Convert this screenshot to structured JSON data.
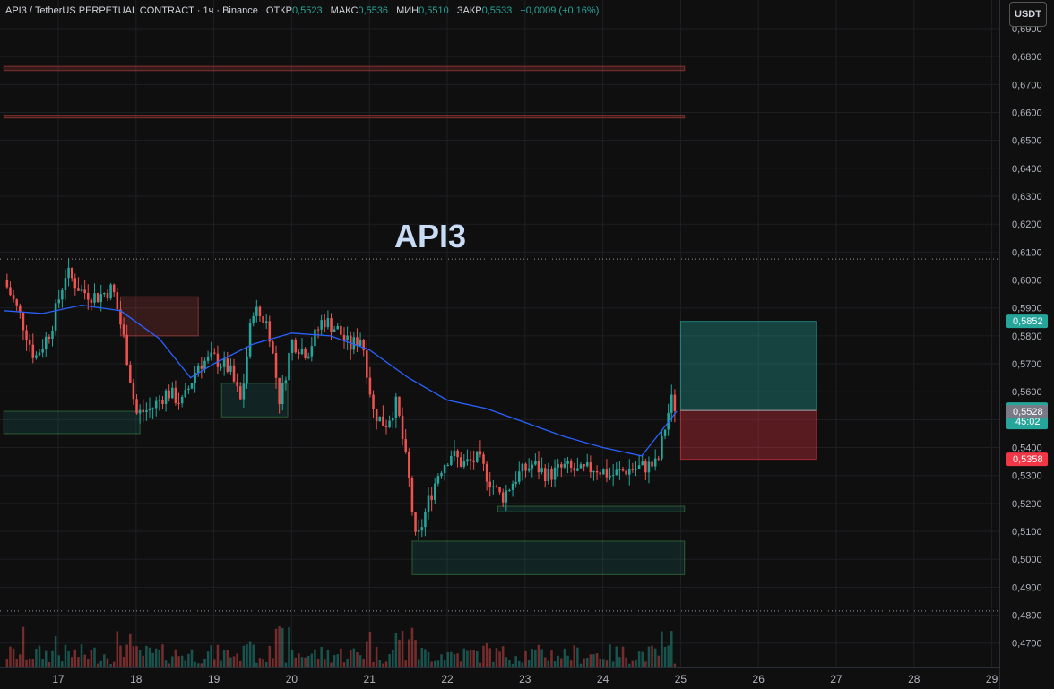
{
  "header": {
    "symbol": "API3 / TetherUS PERPETUAL CONTRACT · 1ч · Binance",
    "open_label": "ОТКР",
    "open": "0,5523",
    "high_label": "МАКС",
    "high": "0,5536",
    "low_label": "МИН",
    "low": "0,5510",
    "close_label": "ЗАКР",
    "close": "0,5533",
    "change": "+0,0009 (+0,16%)"
  },
  "currency_button": "USDT",
  "chart_label": "API3",
  "colors": {
    "background": "#0f0f10",
    "up": "#26a69a",
    "down": "#ef5350",
    "ma": "#2962ff",
    "grid": "#1e1f22",
    "target": "#26a69a",
    "stop": "#f23645"
  },
  "chart_data": {
    "type": "candlestick",
    "title": "API3",
    "timeframe": "1ч",
    "x_ticks": [
      "17",
      "18",
      "19",
      "20",
      "21",
      "22",
      "23",
      "24",
      "25",
      "26",
      "27",
      "28",
      "29"
    ],
    "x_range": [
      16.3,
      29.3
    ],
    "y_ticks": [
      "0,4700",
      "0,4800",
      "0,4900",
      "0,5000",
      "0,5100",
      "0,5200",
      "0,5300",
      "0,5400",
      "0,5500",
      "0,5600",
      "0,5700",
      "0,5800",
      "0,5900",
      "0,6000",
      "0,6100",
      "0,6200",
      "0,6300",
      "0,6400",
      "0,6500",
      "0,6600",
      "0,6700",
      "0,6800",
      "0,6900"
    ],
    "y_range": [
      0.4645,
      0.6905
    ],
    "price_path": [
      [
        16.3,
        0.6
      ],
      [
        16.5,
        0.588
      ],
      [
        16.7,
        0.572
      ],
      [
        16.9,
        0.582
      ],
      [
        17.1,
        0.603
      ],
      [
        17.3,
        0.596
      ],
      [
        17.5,
        0.594
      ],
      [
        17.7,
        0.597
      ],
      [
        17.85,
        0.578
      ],
      [
        18.0,
        0.552
      ],
      [
        18.2,
        0.554
      ],
      [
        18.4,
        0.56
      ],
      [
        18.6,
        0.556
      ],
      [
        18.8,
        0.57
      ],
      [
        19.0,
        0.572
      ],
      [
        19.2,
        0.568
      ],
      [
        19.35,
        0.556
      ],
      [
        19.5,
        0.59
      ],
      [
        19.7,
        0.584
      ],
      [
        19.85,
        0.556
      ],
      [
        20.0,
        0.578
      ],
      [
        20.2,
        0.574
      ],
      [
        20.4,
        0.586
      ],
      [
        20.6,
        0.582
      ],
      [
        20.75,
        0.576
      ],
      [
        20.9,
        0.58
      ],
      [
        21.05,
        0.553
      ],
      [
        21.2,
        0.548
      ],
      [
        21.35,
        0.556
      ],
      [
        21.5,
        0.53
      ],
      [
        21.6,
        0.505
      ],
      [
        21.75,
        0.52
      ],
      [
        21.9,
        0.532
      ],
      [
        22.05,
        0.538
      ],
      [
        22.2,
        0.534
      ],
      [
        22.4,
        0.536
      ],
      [
        22.55,
        0.528
      ],
      [
        22.7,
        0.522
      ],
      [
        22.9,
        0.53
      ],
      [
        23.1,
        0.534
      ],
      [
        23.3,
        0.53
      ],
      [
        23.5,
        0.533
      ],
      [
        23.7,
        0.531
      ],
      [
        23.9,
        0.533
      ],
      [
        24.1,
        0.53
      ],
      [
        24.3,
        0.532
      ],
      [
        24.5,
        0.533
      ],
      [
        24.7,
        0.534
      ],
      [
        24.82,
        0.55
      ],
      [
        24.88,
        0.557
      ],
      [
        24.95,
        0.5533
      ]
    ],
    "moving_average_path": [
      [
        16.3,
        0.589
      ],
      [
        16.8,
        0.588
      ],
      [
        17.3,
        0.591
      ],
      [
        17.8,
        0.589
      ],
      [
        18.3,
        0.579
      ],
      [
        18.7,
        0.565
      ],
      [
        19.0,
        0.57
      ],
      [
        19.5,
        0.577
      ],
      [
        20.0,
        0.581
      ],
      [
        20.5,
        0.58
      ],
      [
        21.0,
        0.575
      ],
      [
        21.5,
        0.565
      ],
      [
        22.0,
        0.557
      ],
      [
        22.5,
        0.554
      ],
      [
        23.0,
        0.549
      ],
      [
        23.5,
        0.544
      ],
      [
        24.0,
        0.54
      ],
      [
        24.5,
        0.537
      ],
      [
        24.95,
        0.553
      ]
    ],
    "horizontal_lines": [
      0.6075,
      0.4815
    ],
    "zones": [
      {
        "kind": "resistance",
        "x": [
          16.3,
          25.05
        ],
        "y": [
          0.675,
          0.6765
        ]
      },
      {
        "kind": "resistance",
        "x": [
          16.3,
          25.05
        ],
        "y": [
          0.658,
          0.659
        ]
      },
      {
        "kind": "resistance",
        "x": [
          17.8,
          18.8
        ],
        "y": [
          0.58,
          0.594
        ]
      },
      {
        "kind": "support",
        "x": [
          16.3,
          18.05
        ],
        "y": [
          0.545,
          0.553
        ]
      },
      {
        "kind": "support",
        "x": [
          19.1,
          19.95
        ],
        "y": [
          0.551,
          0.563
        ]
      },
      {
        "kind": "support",
        "x": [
          22.65,
          25.05
        ],
        "y": [
          0.517,
          0.519
        ]
      },
      {
        "kind": "support",
        "x": [
          21.55,
          25.05
        ],
        "y": [
          0.4945,
          0.5065
        ]
      }
    ],
    "position": {
      "x": [
        25.0,
        26.75
      ],
      "entry": 0.5533,
      "target": 0.5852,
      "stop": 0.5358
    },
    "price_badges": [
      {
        "label": "0,5852",
        "value": 0.5852,
        "color": "#26a69a"
      },
      {
        "label": "0,5533",
        "sub": "45:02",
        "value": 0.5533,
        "color": "#26a69a"
      },
      {
        "label": "0,5528",
        "value": 0.5528,
        "color": "#787b86"
      },
      {
        "label": "0,5358",
        "value": 0.5358,
        "color": "#f23645"
      }
    ]
  }
}
